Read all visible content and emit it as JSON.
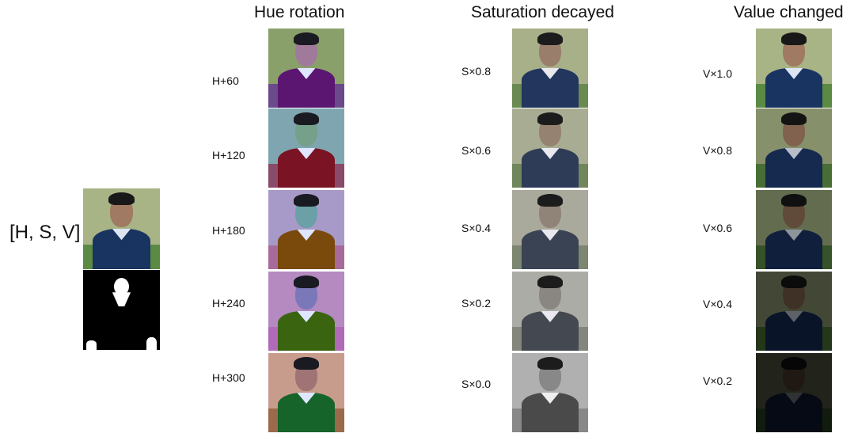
{
  "input_label": "[H, S, V]",
  "columns": {
    "hue": {
      "title": "Hue rotation",
      "rows": [
        {
          "label": "H+60",
          "shirt": "#5a1670",
          "face": "#a07a9a",
          "bg": "#8aa06a",
          "lawn": "#6a4a8a",
          "collar": "#dfe6ff",
          "hair": "#1a1a22"
        },
        {
          "label": "H+120",
          "shirt": "#7a1424",
          "face": "#76a08a",
          "bg": "#7fa6b0",
          "lawn": "#8a4a6a",
          "collar": "#dfe6ff",
          "hair": "#1a1a22"
        },
        {
          "label": "H+180",
          "shirt": "#7a4a0c",
          "face": "#6aa0a6",
          "bg": "#a89ac8",
          "lawn": "#a86a9a",
          "collar": "#dfe6ff",
          "hair": "#1a1a22"
        },
        {
          "label": "H+240",
          "shirt": "#3a6410",
          "face": "#7a78b8",
          "bg": "#b48ac0",
          "lawn": "#b06ab8",
          "collar": "#dfe6ff",
          "hair": "#1a1a22"
        },
        {
          "label": "H+300",
          "shirt": "#16642a",
          "face": "#a07474",
          "bg": "#c89c8c",
          "lawn": "#9a6a4a",
          "collar": "#dfe6ff",
          "hair": "#1a1a22"
        }
      ]
    },
    "saturation": {
      "title": "Saturation decayed",
      "rows": [
        {
          "label": "S×0.8",
          "shirt": "#22365e",
          "face": "#9a7e6c",
          "bg": "#a8b08a",
          "lawn": "#6a8a52",
          "collar": "#e8e8ee",
          "hair": "#1c1c1c"
        },
        {
          "label": "S×0.6",
          "shirt": "#2e3c58",
          "face": "#968270",
          "bg": "#a8ac92",
          "lawn": "#72865e",
          "collar": "#e8e8ee",
          "hair": "#1c1c1c"
        },
        {
          "label": "S×0.4",
          "shirt": "#3a4354",
          "face": "#908478",
          "bg": "#aaaa9c",
          "lawn": "#7c8670",
          "collar": "#e8e8ee",
          "hair": "#1c1c1c"
        },
        {
          "label": "S×0.2",
          "shirt": "#444850",
          "face": "#8a8682",
          "bg": "#acaca6",
          "lawn": "#84867e",
          "collar": "#e8e8ee",
          "hair": "#1c1c1c"
        },
        {
          "label": "S×0.0",
          "shirt": "#4a4a4a",
          "face": "#888888",
          "bg": "#b0b0b0",
          "lawn": "#888888",
          "collar": "#eeeeee",
          "hair": "#1c1c1c"
        }
      ]
    },
    "value": {
      "title": "Value changed",
      "rows": [
        {
          "label": "V×1.0",
          "shirt": "#1a3462",
          "face": "#a07a62",
          "bg": "#a8b486",
          "lawn": "#5a8a44",
          "collar": "#dde4f2",
          "hair": "#181818"
        },
        {
          "label": "V×0.8",
          "shirt": "#152a4e",
          "face": "#80624e",
          "bg": "#86906a",
          "lawn": "#486e36",
          "collar": "#b8bec8",
          "hair": "#141414"
        },
        {
          "label": "V×0.6",
          "shirt": "#10203c",
          "face": "#604a3a",
          "bg": "#646c50",
          "lawn": "#365228",
          "collar": "#8e949c",
          "hair": "#101010"
        },
        {
          "label": "V×0.4",
          "shirt": "#0a1428",
          "face": "#403126",
          "bg": "#434836",
          "lawn": "#24371b",
          "collar": "#5e6268",
          "hair": "#0b0b0b"
        },
        {
          "label": "V×0.2",
          "shirt": "#050a14",
          "face": "#201913",
          "bg": "#22241b",
          "lawn": "#121c0e",
          "collar": "#2f3134",
          "hair": "#060606"
        }
      ]
    }
  },
  "input_image": {
    "shirt": "#1a3462",
    "face": "#a07a62",
    "bg": "#a8b486",
    "lawn": "#5a8a44",
    "collar": "#dde4f2",
    "hair": "#181818"
  }
}
